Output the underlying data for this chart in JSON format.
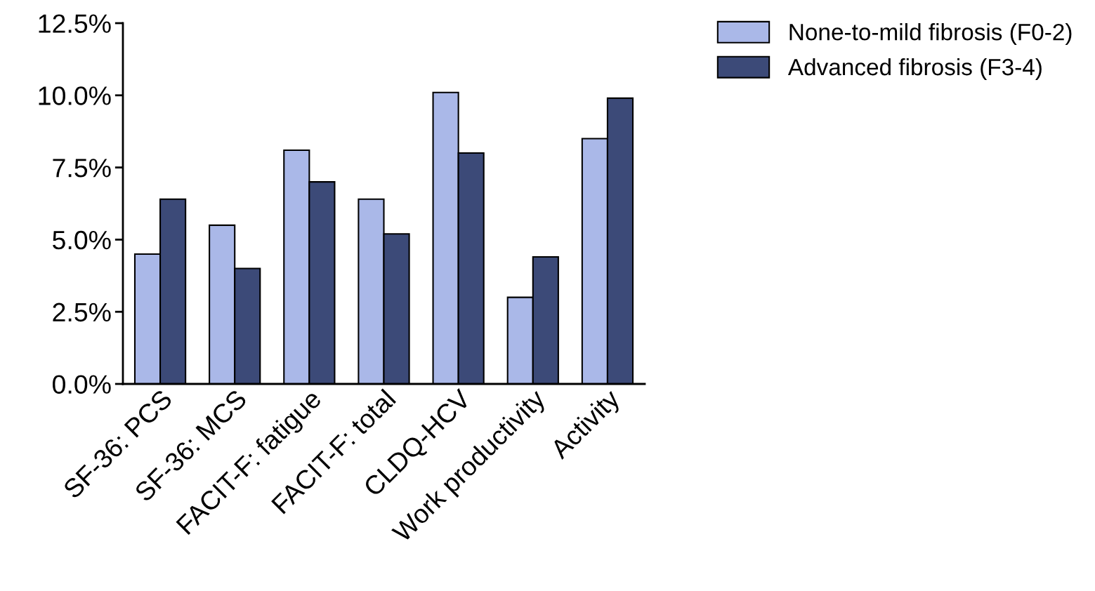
{
  "chart_data": {
    "type": "bar",
    "categories": [
      "SF-36: PCS",
      "SF-36: MCS",
      "FACIT-F: fatigue",
      "FACIT-F: total",
      "CLDQ-HCV",
      "Work productivity",
      "Activity"
    ],
    "series": [
      {
        "name": "None-to-mild fibrosis (F0-2)",
        "color": "#aab8e8",
        "values": [
          4.5,
          5.5,
          8.1,
          6.4,
          10.1,
          3.0,
          8.5
        ]
      },
      {
        "name": "Advanced fibrosis (F3-4)",
        "color": "#3c4a78",
        "values": [
          6.4,
          4.0,
          7.0,
          5.2,
          8.0,
          4.4,
          9.9
        ]
      }
    ],
    "ylim": [
      0,
      12.5
    ],
    "yticks": [
      {
        "value": 0,
        "label": "0.0%"
      },
      {
        "value": 2.5,
        "label": "2.5%"
      },
      {
        "value": 5,
        "label": "5.0%"
      },
      {
        "value": 7.5,
        "label": "7.5%"
      },
      {
        "value": 10,
        "label": "10.0%"
      },
      {
        "value": 12.5,
        "label": "12.5%"
      }
    ],
    "grid": false,
    "legend": "top right"
  }
}
